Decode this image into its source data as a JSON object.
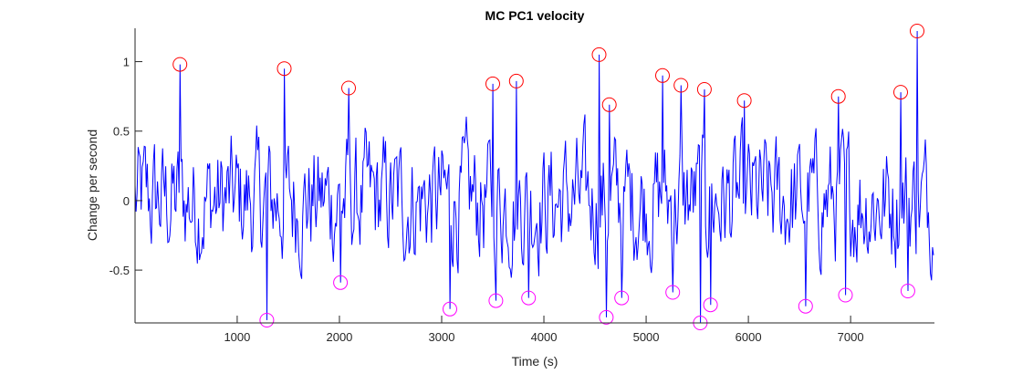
{
  "chart_data": {
    "type": "line",
    "title": "MC PC1 velocity",
    "xlabel": "Time (s)",
    "ylabel": "Change per second",
    "xlim": [
      1,
      7820
    ],
    "ylim": [
      -0.88,
      1.24
    ],
    "xticks": [
      1000,
      2000,
      3000,
      4000,
      5000,
      6000,
      7000
    ],
    "xtick_labels": [
      "1000",
      "2000",
      "3000",
      "4000",
      "5000",
      "6000",
      "7000"
    ],
    "yticks": [
      -0.5,
      0,
      0.5,
      1
    ],
    "ytick_labels": [
      "-0.5",
      "0",
      "0.5",
      "1"
    ],
    "grid": false,
    "legend": "none",
    "line_color": "#0000ff",
    "series": [
      {
        "kind": "line",
        "color": "#0000ff",
        "note": "dense velocity trace, approx. 1 sample per 10 s; peak samples match circled markers",
        "x_start": 1,
        "x_step": 10,
        "noise_amplitude": 0.36
      },
      {
        "kind": "markers",
        "marker": "circle",
        "color": "#ff0000",
        "points": [
          {
            "x": 440,
            "y": 0.98
          },
          {
            "x": 1460,
            "y": 0.95
          },
          {
            "x": 2090,
            "y": 0.81
          },
          {
            "x": 3500,
            "y": 0.84
          },
          {
            "x": 3730,
            "y": 0.86
          },
          {
            "x": 4540,
            "y": 1.05
          },
          {
            "x": 4640,
            "y": 0.69
          },
          {
            "x": 5160,
            "y": 0.9
          },
          {
            "x": 5340,
            "y": 0.83
          },
          {
            "x": 5570,
            "y": 0.8
          },
          {
            "x": 5960,
            "y": 0.72
          },
          {
            "x": 6880,
            "y": 0.75
          },
          {
            "x": 7490,
            "y": 0.78
          },
          {
            "x": 7650,
            "y": 1.22
          }
        ]
      },
      {
        "kind": "markers",
        "marker": "circle",
        "color": "#ff00ff",
        "points": [
          {
            "x": 1290,
            "y": -0.86
          },
          {
            "x": 2010,
            "y": -0.59
          },
          {
            "x": 3080,
            "y": -0.78
          },
          {
            "x": 3530,
            "y": -0.72
          },
          {
            "x": 3850,
            "y": -0.7
          },
          {
            "x": 4610,
            "y": -0.84
          },
          {
            "x": 4760,
            "y": -0.7
          },
          {
            "x": 5260,
            "y": -0.66
          },
          {
            "x": 5530,
            "y": -0.88
          },
          {
            "x": 5630,
            "y": -0.75
          },
          {
            "x": 6560,
            "y": -0.76
          },
          {
            "x": 6950,
            "y": -0.68
          },
          {
            "x": 7560,
            "y": -0.65
          }
        ]
      }
    ]
  }
}
